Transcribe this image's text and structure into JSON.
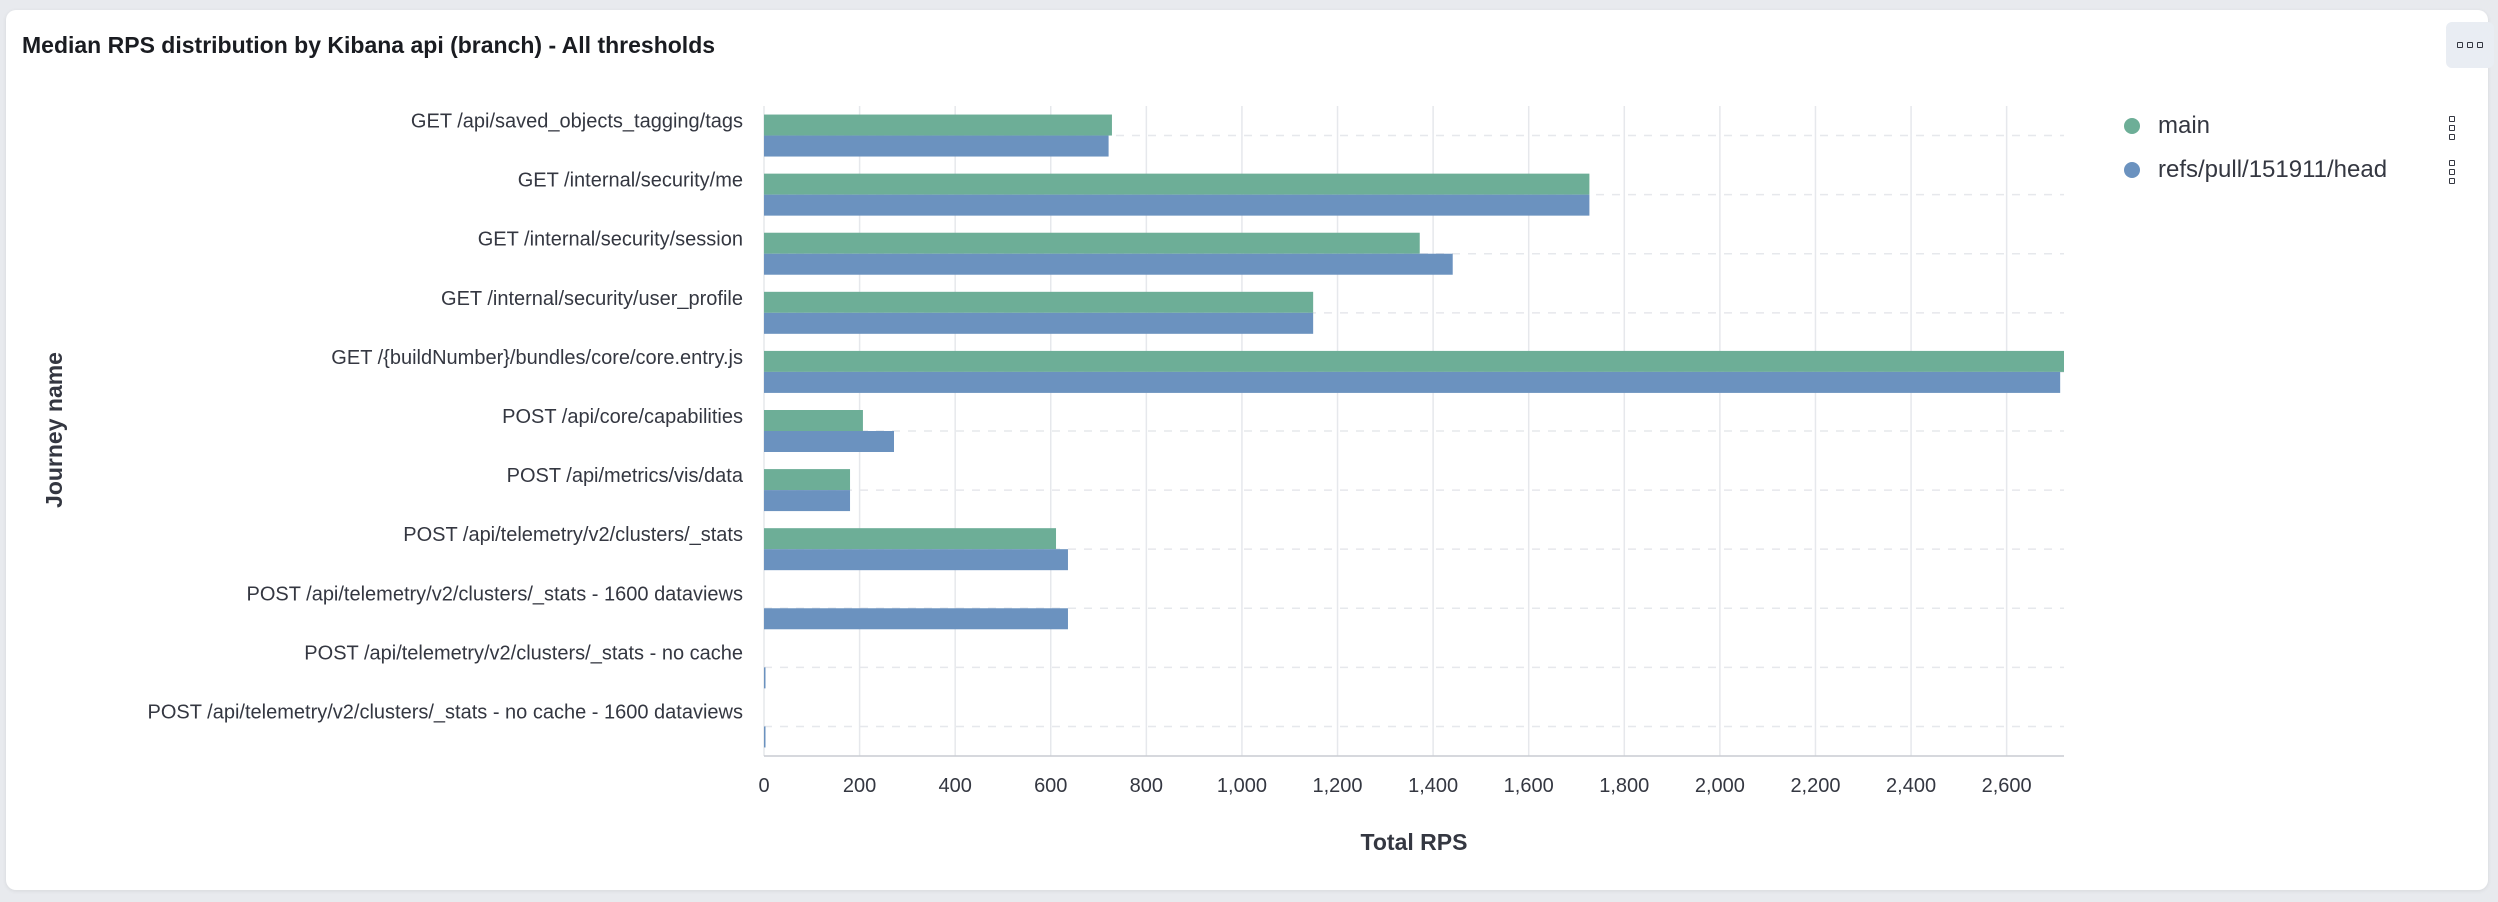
{
  "panel": {
    "title": "Median RPS distribution by Kibana api (branch) - All thresholds",
    "options_icon": "three-dots-horizontal-icon"
  },
  "colors": {
    "main": "#6dae97",
    "branch": "#6b92bf",
    "grid": "#e6e8ec",
    "text": "#343741"
  },
  "legend": {
    "items": [
      {
        "label": "main",
        "color": "#6dae97",
        "menu_icon": "vertical-dots-icon"
      },
      {
        "label": "refs/pull/151911/head",
        "color": "#6b92bf",
        "menu_icon": "vertical-dots-icon"
      }
    ]
  },
  "chart_data": {
    "type": "bar",
    "orientation": "horizontal",
    "title": "Median RPS distribution by Kibana api (branch) - All thresholds",
    "xlabel": "Total RPS",
    "ylabel": "Journey name",
    "xlim": [
      0,
      2720
    ],
    "xticks": [
      "0",
      "200",
      "400",
      "600",
      "800",
      "1,000",
      "1,200",
      "1,400",
      "1,600",
      "1,800",
      "2,000",
      "2,200",
      "2,400",
      "2,600"
    ],
    "xtick_values": [
      0,
      200,
      400,
      600,
      800,
      1000,
      1200,
      1400,
      1600,
      1800,
      2000,
      2200,
      2400,
      2600
    ],
    "grid": true,
    "legend_position": "top-right",
    "categories": [
      "GET /api/saved_objects_tagging/tags",
      "GET /internal/security/me",
      "GET /internal/security/session",
      "GET /internal/security/user_profile",
      "GET /{buildNumber}/bundles/core/core.entry.js",
      "POST /api/core/capabilities",
      "POST /api/metrics/vis/data",
      "POST /api/telemetry/v2/clusters/_stats",
      "POST /api/telemetry/v2/clusters/_stats - 1600 dataviews",
      "POST /api/telemetry/v2/clusters/_stats - no cache",
      "POST /api/telemetry/v2/clusters/_stats - no cache - 1600 dataviews"
    ],
    "series": [
      {
        "name": "main",
        "values": [
          728,
          1727,
          1372,
          1149,
          2720,
          207,
          180,
          611,
          null,
          null,
          null
        ]
      },
      {
        "name": "refs/pull/151911/head",
        "values": [
          721,
          1727,
          1441,
          1149,
          2712,
          272,
          180,
          636,
          636,
          2,
          2
        ]
      }
    ]
  }
}
